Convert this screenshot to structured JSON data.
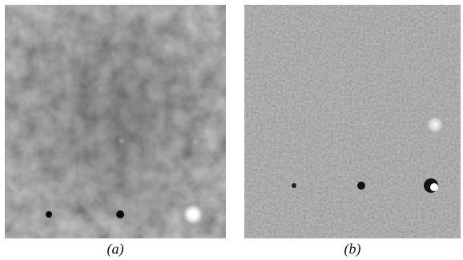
{
  "figure": {
    "panels": [
      {
        "id": "a",
        "caption": "(a)"
      },
      {
        "id": "b",
        "caption": "(b)"
      }
    ]
  },
  "colors": {
    "panel_a_base": "#6e6e6e",
    "panel_b_base": "#8c8c8c",
    "dark_spot": "#0a0a0a",
    "bright_spot": "#ffffff"
  }
}
